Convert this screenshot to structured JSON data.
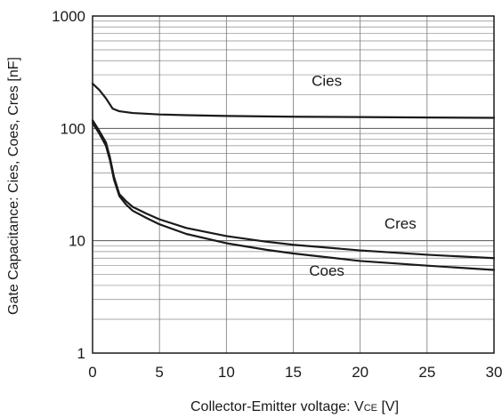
{
  "chart_data": {
    "type": "line",
    "title": "",
    "xlabel_main": "Collector-Emitter voltage: V",
    "xlabel_sub": "CE",
    "xlabel_unit": " [V]",
    "ylabel": "Gate Capacitance: Cies, Coes, Cres [nF]",
    "xlim": [
      0,
      30
    ],
    "ylim": [
      1,
      1000
    ],
    "yscale": "log",
    "grid": true,
    "x_ticks": [
      "0",
      "5",
      "10",
      "15",
      "20",
      "25",
      "30"
    ],
    "y_ticks": [
      "1",
      "10",
      "100",
      "1000"
    ],
    "series": [
      {
        "name": "Cies",
        "color": "#1a1a1a",
        "x": [
          0,
          0.5,
          1.0,
          1.5,
          2,
          3,
          5,
          7,
          10,
          15,
          20,
          25,
          30
        ],
        "y": [
          250,
          220,
          185,
          150,
          142,
          137,
          133,
          131,
          129,
          127,
          126,
          125,
          124
        ]
      },
      {
        "name": "Cres",
        "color": "#1a1a1a",
        "x": [
          0,
          0.5,
          1.0,
          1.3,
          1.6,
          2,
          2.5,
          3,
          4,
          5,
          7,
          10,
          13,
          15,
          20,
          25,
          30
        ],
        "y": [
          118,
          95,
          75,
          55,
          37,
          26,
          22.5,
          20,
          17.5,
          15.5,
          13,
          11,
          9.8,
          9.2,
          8.2,
          7.5,
          7.0
        ]
      },
      {
        "name": "Coes",
        "color": "#1a1a1a",
        "x": [
          0,
          0.5,
          1.0,
          1.3,
          1.6,
          2,
          2.5,
          3,
          4,
          5,
          7,
          10,
          13,
          15,
          20,
          25,
          30
        ],
        "y": [
          112,
          90,
          70,
          52,
          35,
          25,
          21,
          18.5,
          16,
          14,
          11.5,
          9.5,
          8.3,
          7.7,
          6.6,
          6.0,
          5.5
        ]
      }
    ],
    "labels": [
      {
        "text": "Cies",
        "x": 17.5,
        "y": 240
      },
      {
        "text": "Cres",
        "x": 23,
        "y": 12.8
      },
      {
        "text": "Coes",
        "x": 17.5,
        "y": 4.9
      }
    ]
  }
}
